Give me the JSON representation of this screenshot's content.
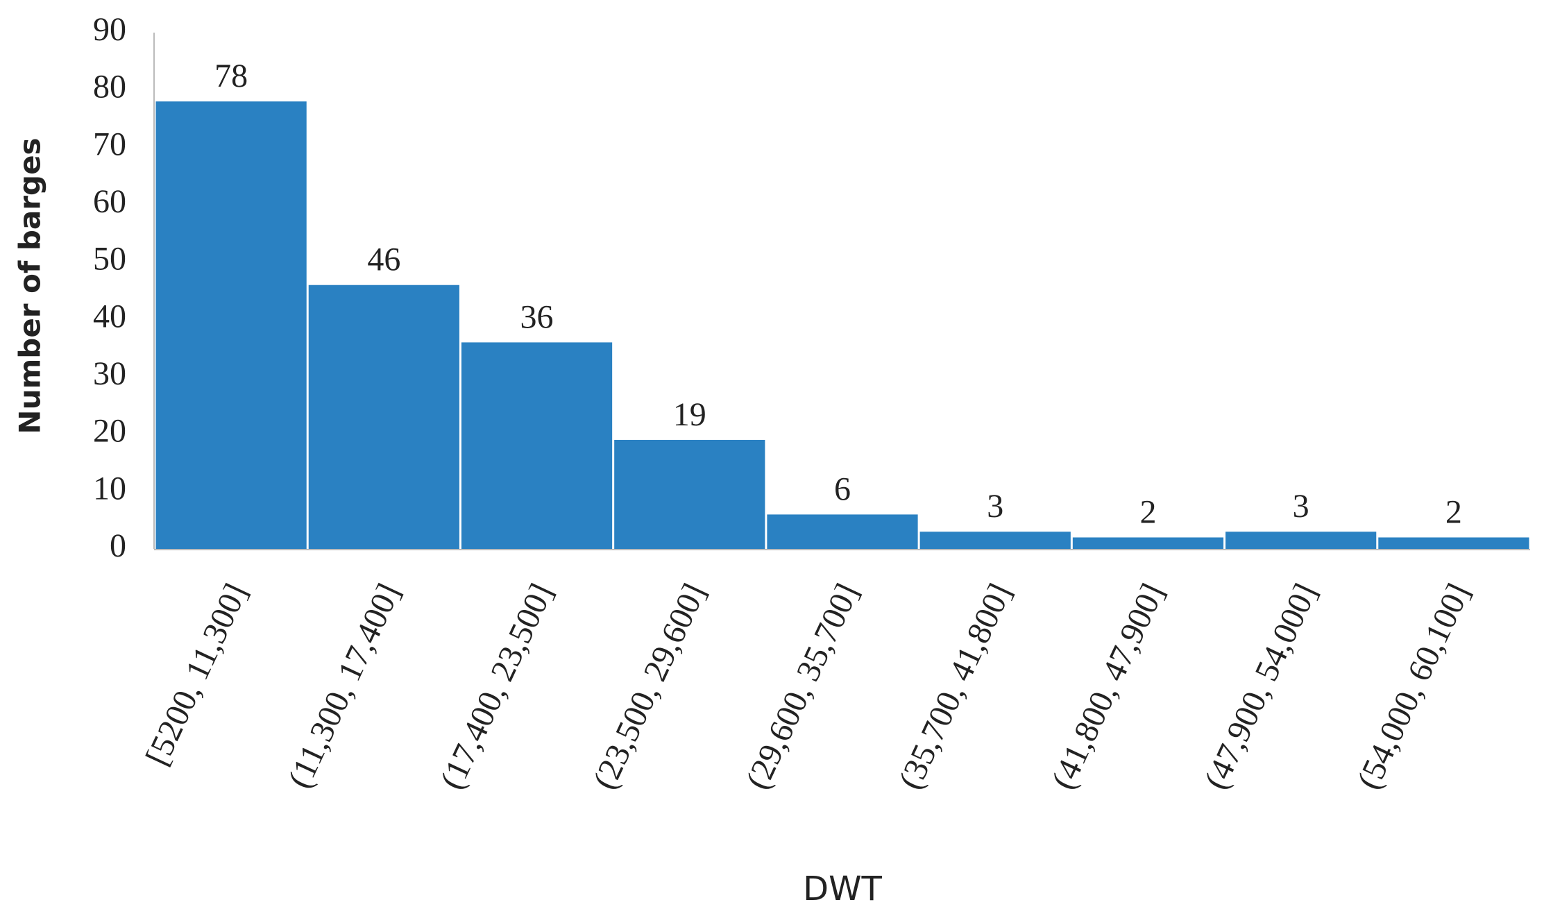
{
  "chart_data": {
    "type": "bar",
    "x_label": "DWT",
    "y_label": "Number of barges",
    "categories": [
      "[5200, 11,300]",
      "(11,300, 17,400]",
      "(17,400, 23,500]",
      "(23,500, 29,600]",
      "(29,600, 35,700]",
      "(35,700, 41,800]",
      "(41,800, 47,900]",
      "(47,900, 54,000]",
      "(54,000, 60,100]"
    ],
    "values": [
      78,
      46,
      36,
      19,
      6,
      3,
      2,
      3,
      2
    ],
    "color": "#2a81c2",
    "ylim": [
      0,
      90
    ],
    "yticks": [
      0,
      10,
      20,
      30,
      40,
      50,
      60,
      70,
      80,
      90
    ],
    "grid": false
  }
}
